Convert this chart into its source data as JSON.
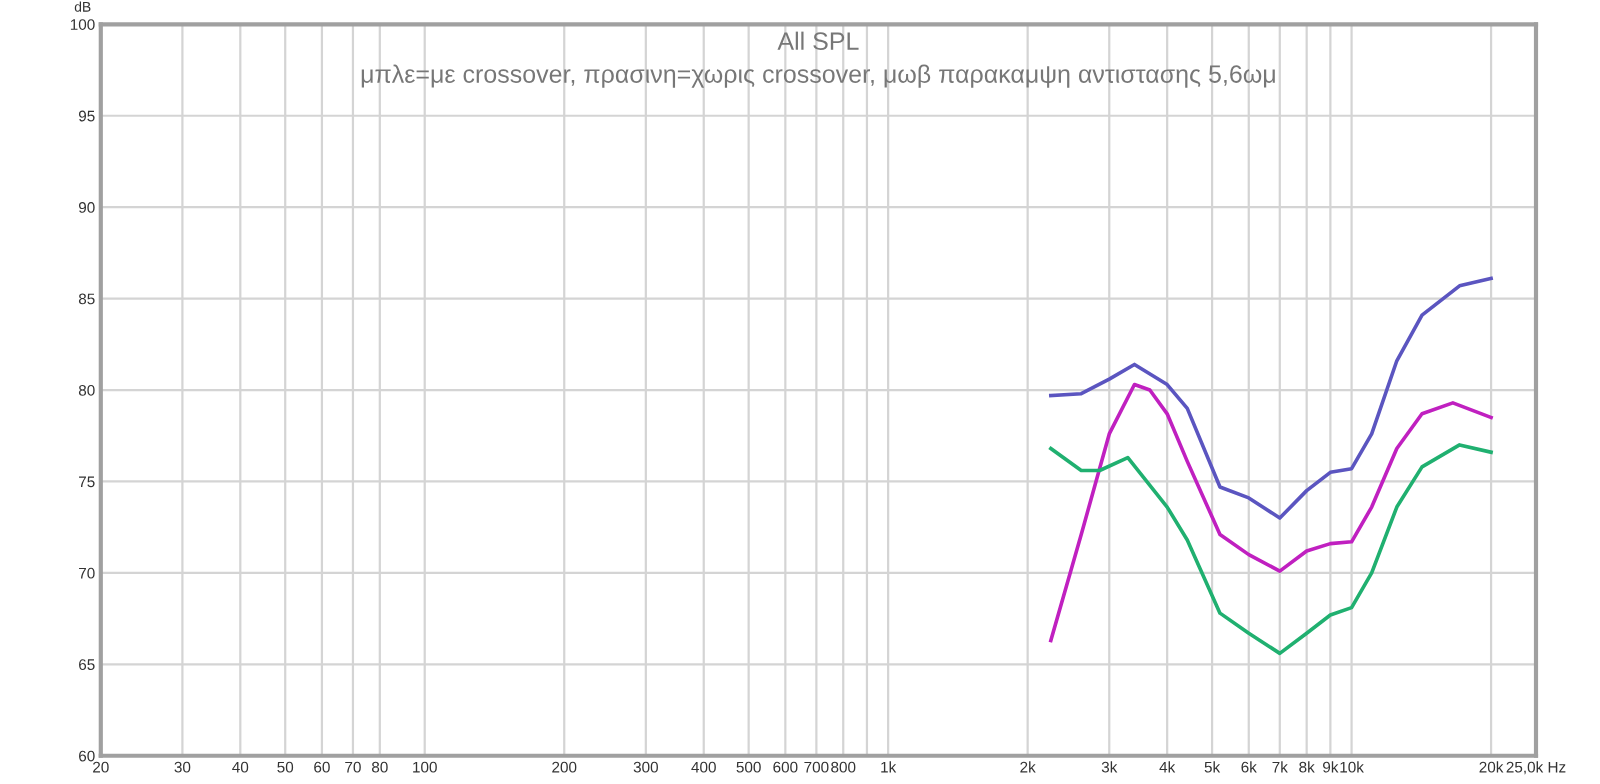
{
  "chart_data": {
    "type": "line",
    "title": "All SPL",
    "subtitle": "μπλε=με crossover, πρασινη=χωρις crossover, μωβ παρακαμψη αντιστασης 5,6ωμ",
    "ylabel": "dB",
    "log": "x",
    "grid": true,
    "marker": "none",
    "line_style": "solid",
    "xlim": [
      20,
      25000
    ],
    "ylim": [
      60,
      100
    ],
    "xticks": [
      20,
      30,
      40,
      50,
      60,
      70,
      80,
      100,
      200,
      300,
      400,
      500,
      600,
      700,
      800,
      {
        "value": 900,
        "label": null
      },
      {
        "value": 1000,
        "label": "1k"
      },
      {
        "value": 2000,
        "label": "2k"
      },
      {
        "value": 3000,
        "label": "3k"
      },
      {
        "value": 4000,
        "label": "4k"
      },
      {
        "value": 5000,
        "label": "5k"
      },
      {
        "value": 6000,
        "label": "6k"
      },
      {
        "value": 7000,
        "label": "7k"
      },
      {
        "value": 8000,
        "label": "8k"
      },
      {
        "value": 9000,
        "label": "9k"
      },
      {
        "value": 10000,
        "label": "10k"
      },
      {
        "value": 20000,
        "label": "20k"
      },
      {
        "value": 25000,
        "label": "25,0k Hz"
      }
    ],
    "yticks": [
      60,
      65,
      70,
      75,
      80,
      85,
      90,
      95,
      100
    ],
    "series": [
      {
        "color": "#5b55c0",
        "x": [
          2244,
          2610,
          3000,
          3400,
          4000,
          4420,
          5200,
          6000,
          7000,
          8000,
          9000,
          10000,
          11050,
          12520,
          14190,
          17100,
          20000
        ],
        "values": [
          79.7,
          79.8,
          80.6,
          81.4,
          80.3,
          79.0,
          74.7,
          74.1,
          73.0,
          74.5,
          75.5,
          75.7,
          77.6,
          81.6,
          84.1,
          85.7,
          86.1
        ]
      },
      {
        "color": "#c020c0",
        "x": [
          2244,
          2610,
          3000,
          3400,
          3670,
          4000,
          4420,
          5200,
          6000,
          7000,
          8000,
          9000,
          10000,
          11050,
          12520,
          14190,
          16540,
          20000
        ],
        "values": [
          66.3,
          72.1,
          77.6,
          80.3,
          80.0,
          78.7,
          76.1,
          72.1,
          71.0,
          70.1,
          71.2,
          71.6,
          71.7,
          73.6,
          76.8,
          78.7,
          79.3,
          78.5
        ]
      },
      {
        "color": "#20b070",
        "x": [
          2244,
          2610,
          2860,
          3290,
          4000,
          4420,
          5200,
          6000,
          7000,
          8000,
          9000,
          10000,
          11050,
          12520,
          14190,
          17100,
          20000
        ],
        "values": [
          76.8,
          75.6,
          75.6,
          76.3,
          73.6,
          71.8,
          67.8,
          66.7,
          65.6,
          66.7,
          67.7,
          68.1,
          70.0,
          73.6,
          75.8,
          77.0,
          76.6
        ]
      }
    ]
  }
}
